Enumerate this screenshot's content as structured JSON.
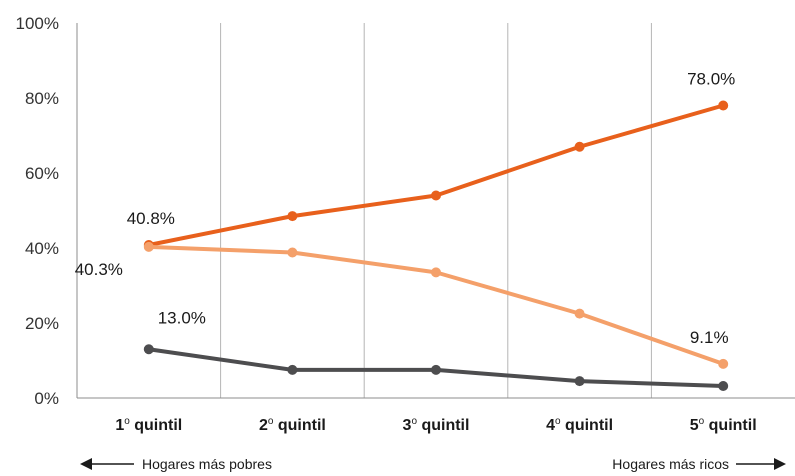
{
  "chart_data": {
    "type": "line",
    "categories": [
      "1º quintil",
      "2º quintil",
      "3º quintil",
      "4º quintil",
      "5º quintil"
    ],
    "category_parts": [
      {
        "num": "1",
        "sup": "o",
        "word": "quintil"
      },
      {
        "num": "2",
        "sup": "o",
        "word": "quintil"
      },
      {
        "num": "3",
        "sup": "o",
        "word": "quintil"
      },
      {
        "num": "4",
        "sup": "o",
        "word": "quintil"
      },
      {
        "num": "5",
        "sup": "o",
        "word": "quintil"
      }
    ],
    "yticks": [
      "0%",
      "20%",
      "40%",
      "60%",
      "80%",
      "100%"
    ],
    "ylim": [
      0,
      100
    ],
    "grid": "vertical",
    "series": [
      {
        "color": "#e8601c",
        "values": [
          40.8,
          48.5,
          54.0,
          67.0,
          78.0
        ]
      },
      {
        "color": "#f4a06a",
        "values": [
          40.3,
          38.8,
          33.5,
          22.5,
          9.1
        ]
      },
      {
        "color": "#4d4d4f",
        "values": [
          13.0,
          7.5,
          7.5,
          4.5,
          3.2
        ]
      }
    ],
    "data_labels": [
      {
        "text": "40.8%",
        "series": 0,
        "point": 0
      },
      {
        "text": "78.0%",
        "series": 0,
        "point": 4
      },
      {
        "text": "40.3%",
        "series": 1,
        "point": 0
      },
      {
        "text": "9.1%",
        "series": 1,
        "point": 4
      },
      {
        "text": "13.0%",
        "series": 2,
        "point": 0
      }
    ],
    "footer_left": "Hogares más pobres",
    "footer_right": "Hogares más ricos"
  }
}
